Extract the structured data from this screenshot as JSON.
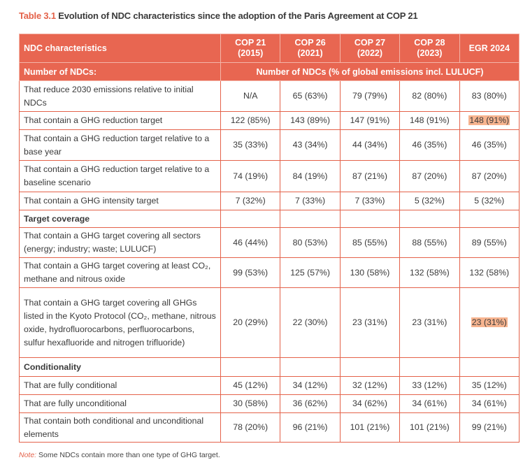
{
  "title": {
    "number": "Table 3.1",
    "text": "Evolution of NDC characteristics since the adoption of the Paris Agreement at COP 21"
  },
  "colors": {
    "accent": "#e86651",
    "border": "#e4624a",
    "highlight": "#f7b48f"
  },
  "header": {
    "first": "NDC characteristics",
    "columns": [
      {
        "line1": "COP 21",
        "line2": "(2015)"
      },
      {
        "line1": "COP 26",
        "line2": "(2021)"
      },
      {
        "line1": "COP 27",
        "line2": "(2022)"
      },
      {
        "line1": "COP 28",
        "line2": "(2023)"
      },
      {
        "line1": "EGR 2024",
        "line2": ""
      }
    ],
    "sub_first": "Number of NDCs:",
    "sub_span": "Number of NDCs (% of global emissions incl. LULUCF)"
  },
  "rows": [
    {
      "type": "data",
      "label": "That reduce 2030 emissions relative to initial NDCs",
      "values": [
        "N/A",
        "65 (63%)",
        "79 (79%)",
        "82 (80%)",
        "83 (80%)"
      ]
    },
    {
      "type": "data",
      "label": "That contain a GHG reduction target",
      "values": [
        "122 (85%)",
        "143 (89%)",
        "147 (91%)",
        "148 (91%)",
        "148 (91%)"
      ],
      "highlight_col": 4
    },
    {
      "type": "data",
      "label": "That contain a GHG reduction target relative to a base year",
      "values": [
        "35 (33%)",
        "43 (34%)",
        "44 (34%)",
        "46 (35%)",
        "46 (35%)"
      ]
    },
    {
      "type": "data",
      "label": "That contain a GHG reduction target relative to a baseline scenario",
      "values": [
        "74 (19%)",
        "84 (19%)",
        "87 (21%)",
        "87 (20%)",
        "87 (20%)"
      ]
    },
    {
      "type": "data",
      "label": "That contain a GHG intensity target",
      "values": [
        "7 (32%)",
        "7 (33%)",
        "7 (33%)",
        "5 (32%)",
        "5 (32%)"
      ]
    },
    {
      "type": "section",
      "label": "Target coverage"
    },
    {
      "type": "data",
      "label": "That contain a GHG target covering all sectors (energy; industry; waste; LULUCF)",
      "values": [
        "46 (44%)",
        "80 (53%)",
        "85 (55%)",
        "88 (55%)",
        "89 (55%)"
      ]
    },
    {
      "type": "data",
      "label": "That contain a GHG target covering at least CO₂, methane and nitrous oxide",
      "values": [
        "99 (53%)",
        "125 (57%)",
        "130 (58%)",
        "132 (58%)",
        "132 (58%)"
      ]
    },
    {
      "type": "data",
      "label": "That contain a GHG target covering all GHGs listed in the Kyoto Protocol (CO₂, methane, nitrous oxide, hydrofluorocarbons, perfluorocarbons, sulfur hexafluoride and nitrogen trifluoride)",
      "values": [
        "20 (29%)",
        "22 (30%)",
        "23 (31%)",
        "23 (31%)",
        "23 (31%)"
      ],
      "highlight_col": 4
    },
    {
      "type": "section",
      "label": "Conditionality"
    },
    {
      "type": "data",
      "label": "That are fully conditional",
      "values": [
        "45 (12%)",
        "34 (12%)",
        "32 (12%)",
        "33 (12%)",
        "35 (12%)"
      ]
    },
    {
      "type": "data",
      "label": "That are fully unconditional",
      "values": [
        "30 (58%)",
        "36 (62%)",
        "34 (62%)",
        "34 (61%)",
        "34 (61%)"
      ]
    },
    {
      "type": "data",
      "label": "That contain both conditional and unconditional elements",
      "values": [
        "78 (20%)",
        "96 (21%)",
        "101 (21%)",
        "101 (21%)",
        "99 (21%)"
      ]
    }
  ],
  "note": {
    "prefix": "Note:",
    "text": " Some NDCs contain more than one type of GHG target."
  }
}
